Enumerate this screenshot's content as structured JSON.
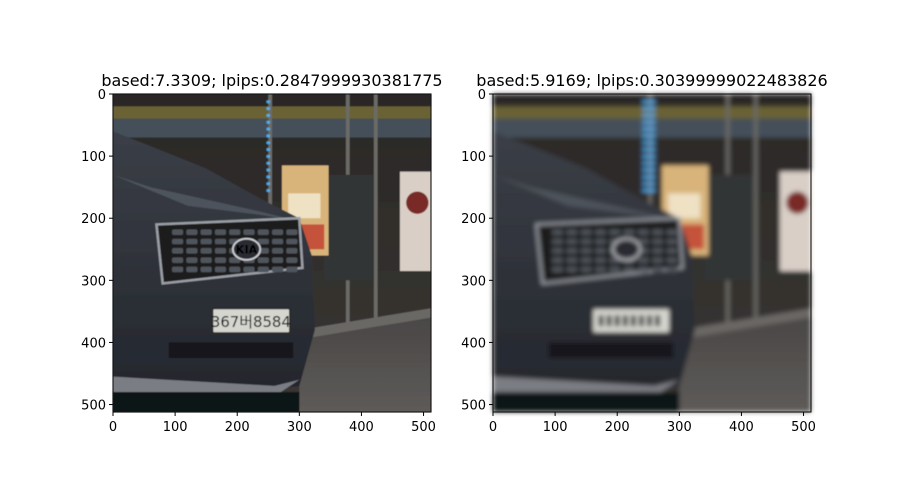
{
  "chart_data": [
    {
      "type": "image",
      "title": "based:7.3309; lpips:0.2847999930381775",
      "xlim": [
        0,
        512
      ],
      "ylim": [
        512,
        0
      ],
      "xticks": [
        0,
        100,
        200,
        300,
        400,
        500
      ],
      "yticks": [
        0,
        100,
        200,
        300,
        400,
        500
      ],
      "image_content": {
        "description": "night street photo of the front of a dark SUV with a KIA logo and a license plate, shop window with a poster in the background",
        "plate_text": "367버8584",
        "logo_text": "KIA",
        "sharpness": "sharp"
      }
    },
    {
      "type": "image",
      "title": "based:5.9169; lpips:0.30399999022483826",
      "xlim": [
        0,
        512
      ],
      "ylim": [
        512,
        0
      ],
      "xticks": [
        0,
        100,
        200,
        300,
        400,
        500
      ],
      "yticks": [
        0,
        100,
        200,
        300,
        400,
        500
      ],
      "image_content": {
        "description": "same scene reconstructed, blurrier, plate text illegible",
        "plate_text": "",
        "logo_text": "",
        "sharpness": "blurry"
      }
    }
  ],
  "colors": {
    "axis": "#000000",
    "car_body": "#2e3138",
    "background_dark": "#1f1d1c",
    "poster": "#d8b47a",
    "blue_light": "#4fb8ff",
    "plate": "#d6d6d0"
  }
}
